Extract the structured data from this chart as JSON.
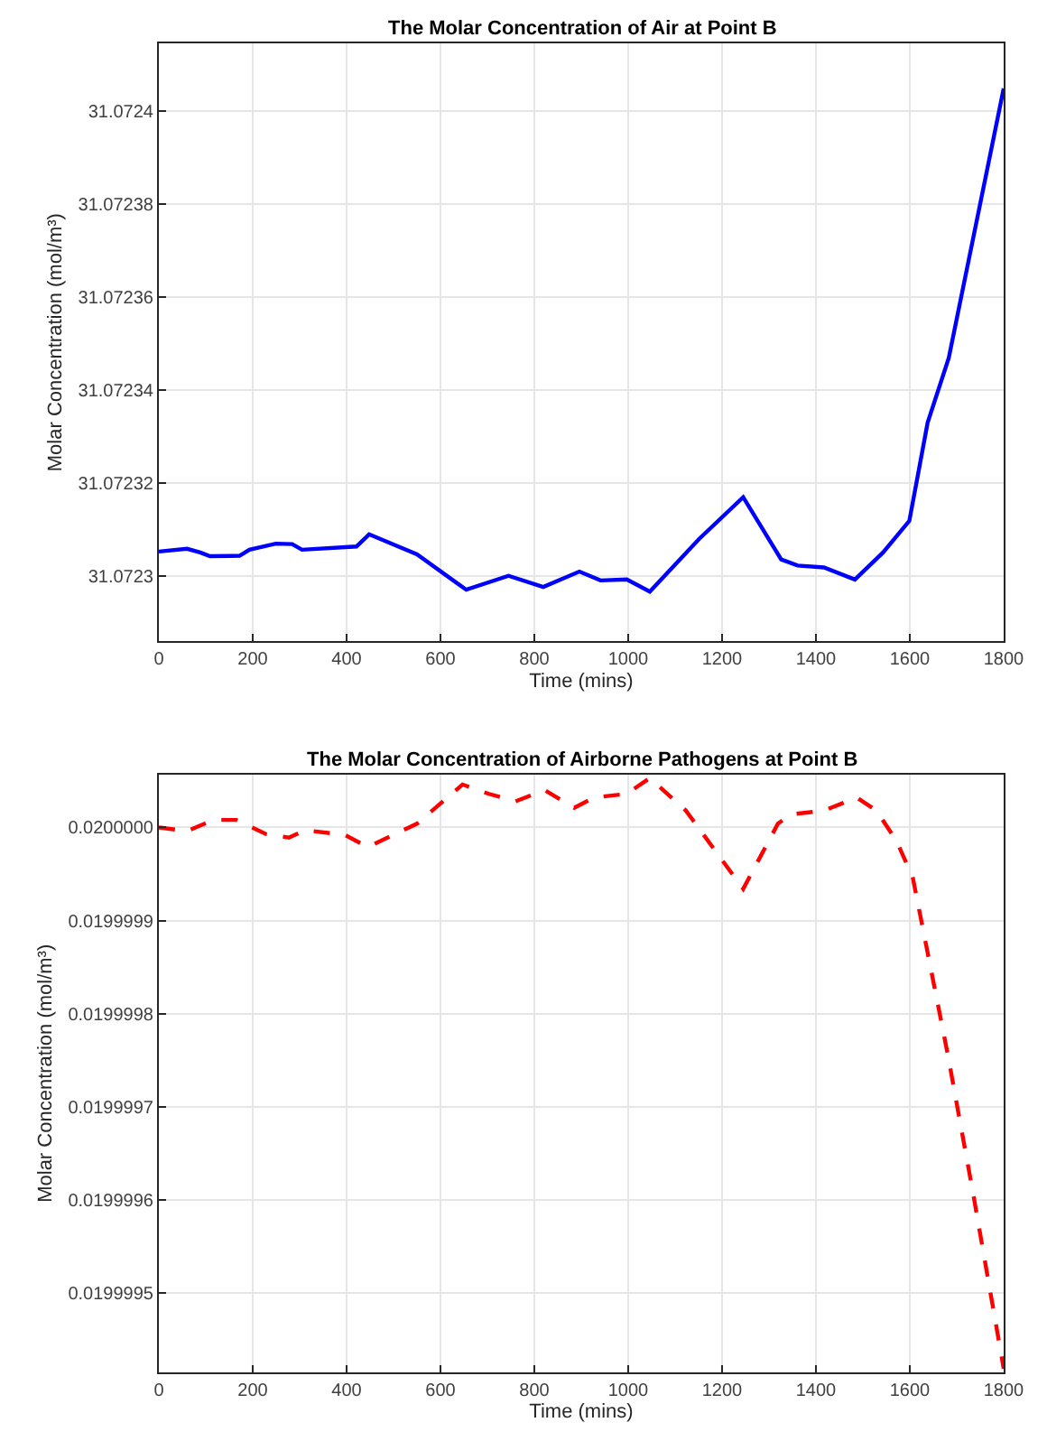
{
  "chart_data": [
    {
      "type": "line",
      "title": "The Molar Concentration of Air at Point B",
      "xlabel": "Time (mins)",
      "ylabel": "Molar Concentration (mol/m³)",
      "xlim": [
        0,
        1800
      ],
      "xticks": [
        0,
        200,
        400,
        600,
        800,
        1000,
        1200,
        1400,
        1600,
        1800
      ],
      "ylim": [
        31.072286,
        31.0724145
      ],
      "yticks": [
        31.0723,
        31.07232,
        31.07234,
        31.07236,
        31.07238,
        31.0724
      ],
      "grid": true,
      "line_style": "solid",
      "series": [
        {
          "color": "#0000ff",
          "x": [
            0,
            60,
            88,
            109,
            172,
            193,
            249,
            284,
            305,
            421,
            448,
            550,
            655,
            745,
            819,
            896,
            941,
            997,
            1046,
            1151,
            1245,
            1326,
            1361,
            1417,
            1483,
            1543,
            1599,
            1638,
            1683,
            1800
          ],
          "values": [
            31.0723053,
            31.0723059,
            31.0723051,
            31.0723043,
            31.0723044,
            31.0723057,
            31.072307,
            31.0723069,
            31.0723057,
            31.0723064,
            31.072309,
            31.0723047,
            31.0722971,
            31.0723001,
            31.0722977,
            31.072301,
            31.0722991,
            31.0722993,
            31.0722967,
            31.072308,
            31.072317,
            31.0723036,
            31.0723023,
            31.0723019,
            31.0722993,
            31.0723051,
            31.0723119,
            31.072333,
            31.0723469,
            31.0724048
          ]
        }
      ]
    },
    {
      "type": "line",
      "title": "The Molar Concentration of Airborne Pathogens at Point B",
      "xlabel": "Time (mins)",
      "ylabel": "Molar Concentration (mol/m³)",
      "xlim": [
        0,
        1800
      ],
      "xticks": [
        0,
        200,
        400,
        600,
        800,
        1000,
        1200,
        1400,
        1600,
        1800
      ],
      "ylim": [
        0.019999415,
        0.020000057
      ],
      "yticks": [
        {
          "value": 0.0199995,
          "label": "0.0199995"
        },
        {
          "value": 0.0199996,
          "label": "0.0199996"
        },
        {
          "value": 0.0199997,
          "label": "0.0199997"
        },
        {
          "value": 0.0199998,
          "label": "0.0199998"
        },
        {
          "value": 0.0199999,
          "label": "0.0199999"
        },
        {
          "value": 0.02,
          "label": "0.0200000"
        }
      ],
      "grid": true,
      "line_style": "dashed",
      "series": [
        {
          "color": "#ff0000",
          "x": [
            0,
            60,
            116,
            165,
            228,
            277,
            312,
            396,
            445,
            550,
            647,
            703,
            760,
            822,
            885,
            927,
            997,
            1046,
            1123,
            1245,
            1319,
            1347,
            1417,
            1487,
            1529,
            1571,
            1606,
            1681,
            1736,
            1800
          ],
          "values": [
            0.02,
            0.019999996,
            0.020000008,
            0.020000008,
            0.019999993,
            0.019999989,
            0.019999997,
            0.019999992,
            0.019999979,
            0.020000004,
            0.020000046,
            0.020000036,
            0.020000028,
            0.02000004,
            0.020000021,
            0.020000032,
            0.020000036,
            0.020000053,
            0.020000018,
            0.019999934,
            0.020000004,
            0.020000014,
            0.020000018,
            0.020000032,
            0.020000018,
            0.019999986,
            0.019999947,
            0.019999756,
            0.019999604,
            0.019999419
          ]
        }
      ]
    }
  ]
}
